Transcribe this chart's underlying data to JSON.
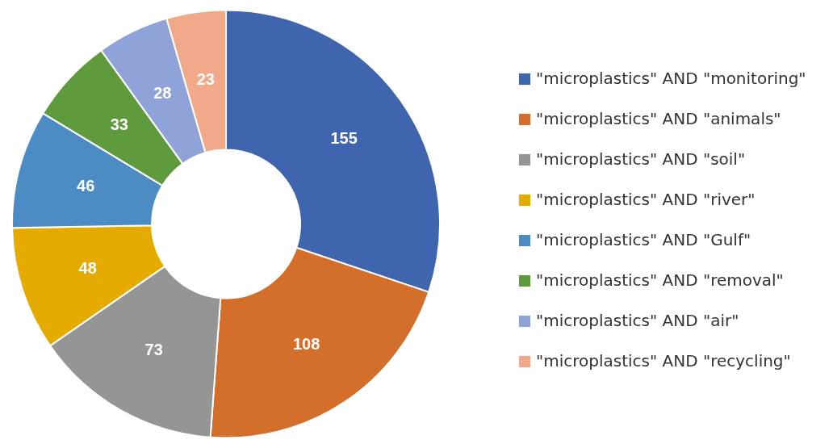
{
  "chart_data": {
    "type": "donut",
    "categories": [
      "\"microplastics\" AND \"monitoring\"",
      "\"microplastics\" AND \"animals\"",
      "\"microplastics\" AND \"soil\"",
      "\"microplastics\" AND \"river\"",
      "\"microplastics\" AND \"Gulf\"",
      "\"microplastics\" AND \"removal\"",
      "\"microplastics\" AND \"air\"",
      "\"microplastics\" AND \"recycling\""
    ],
    "values": [
      155,
      108,
      73,
      48,
      46,
      33,
      28,
      23
    ],
    "colors": [
      "#3f65ae",
      "#d46f2b",
      "#959595",
      "#e5ab00",
      "#4d8bc4",
      "#5f9a3c",
      "#8fa3d8",
      "#f1a98a"
    ],
    "data_labels": true,
    "legend": "right"
  }
}
